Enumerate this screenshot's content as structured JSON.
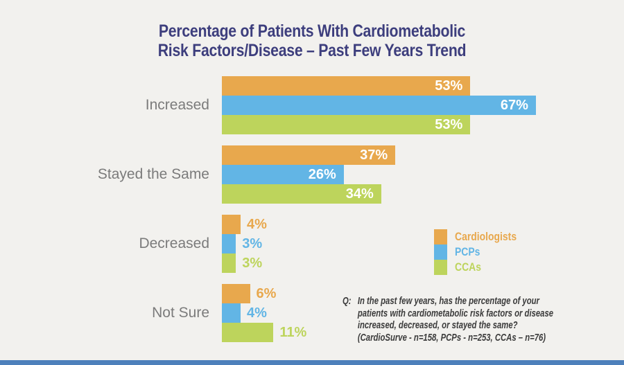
{
  "slide": {
    "background_color": "#f2f1ee",
    "title_line1": "Percentage of Patients With Cardiometabolic",
    "title_line2": "Risk Factors/Disease – Past Few Years Trend",
    "title_color": "#3d3e7d",
    "footer_bar_color": "#4d80bb"
  },
  "chart_data": {
    "type": "bar",
    "orientation": "horizontal",
    "title": "Percentage of Patients With Cardiometabolic Risk Factors/Disease – Past Few Years Trend",
    "categories": [
      "Increased",
      "Stayed the Same",
      "Decreased",
      "Not Sure"
    ],
    "series": [
      {
        "name": "Cardiologists",
        "color": "#e8a84d",
        "values": [
          53,
          37,
          4,
          6
        ]
      },
      {
        "name": "PCPs",
        "color": "#62b5e5",
        "values": [
          67,
          26,
          3,
          4
        ]
      },
      {
        "name": "CCAs",
        "color": "#bdd45c",
        "values": [
          53,
          34,
          3,
          11
        ]
      }
    ],
    "value_suffix": "%",
    "xlim": [
      0,
      85
    ],
    "grid": false,
    "legend_position": "middle-right",
    "category_label_color": "#7b7b7b",
    "inside_value_label_color": "#ffffff",
    "value_label_style": "inside white for large bars, outside in series color for small bars"
  },
  "question": {
    "prefix": "Q:",
    "lines": [
      "In the past few years, has the percentage of your",
      "patients with cardiometabolic risk factors or disease",
      "increased, decreased, or stayed the same?",
      "(CardioSurve - n=158, PCPs - n=253, CCAs – n=76)"
    ]
  }
}
